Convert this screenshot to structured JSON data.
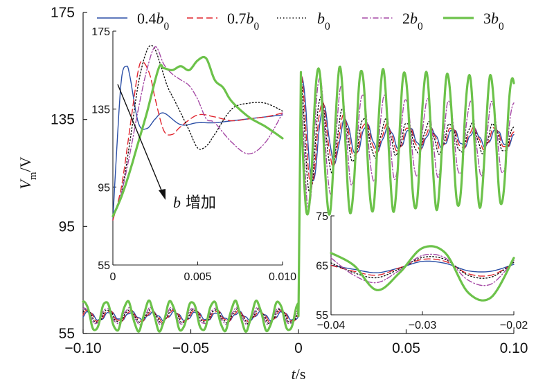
{
  "chart_data": [
    {
      "type": "line",
      "panel": "main",
      "title": "",
      "xlabel": "t/s",
      "ylabel": "Vm/V",
      "xlim": [
        -0.1,
        0.1
      ],
      "ylim": [
        55,
        175
      ],
      "xticks": [
        "−0.10",
        "−0.05",
        "0",
        "0.05",
        "0.10"
      ],
      "yticks": [
        "55",
        "95",
        "135",
        "175"
      ],
      "grid": false,
      "legend": {
        "placement": "top",
        "entries": [
          {
            "label": "0.4b0",
            "color": "#2b4fa6",
            "dash": "solid"
          },
          {
            "label": "0.7b0",
            "color": "#e0262f",
            "dash": "dashed"
          },
          {
            "label": "b0",
            "color": "#111111",
            "dash": "dotted"
          },
          {
            "label": "2b0",
            "color": "#a64aa6",
            "dash": "dashdot"
          },
          {
            "label": "3b0",
            "color": "#6cc24a",
            "dash": "solid"
          }
        ]
      },
      "description_series": [
        {
          "name": "0.4b0",
          "pre_fault": {
            "mean": 61.5,
            "amplitude": 1.5,
            "period_s": 0.01
          },
          "post_fault": {
            "mean": 128,
            "amplitude": 4,
            "period_s": 0.01
          }
        },
        {
          "name": "0.7b0",
          "pre_fault": {
            "mean": 61.5,
            "amplitude": 2,
            "period_s": 0.01
          },
          "post_fault": {
            "mean": 128,
            "amplitude": 5,
            "period_s": 0.01
          }
        },
        {
          "name": "b0",
          "pre_fault": {
            "mean": 61.5,
            "amplitude": 2.5,
            "period_s": 0.01
          },
          "post_fault": {
            "mean": 128,
            "amplitude": 7,
            "period_s": 0.01
          }
        },
        {
          "name": "2b0",
          "pre_fault": {
            "mean": 61.5,
            "amplitude": 3,
            "period_s": 0.01
          },
          "post_fault": {
            "mean": 128,
            "amplitude": 18,
            "period_s": 0.01
          }
        },
        {
          "name": "3b0",
          "pre_fault": {
            "mean": 61.5,
            "amplitude": 5.5,
            "period_s": 0.01
          },
          "post_fault": {
            "mean": 127,
            "amplitude": 28,
            "period_s": 0.01
          }
        }
      ]
    },
    {
      "type": "line",
      "panel": "inset-top-left",
      "xlim": [
        0,
        0.01
      ],
      "ylim": [
        55,
        175
      ],
      "xticks": [
        "0",
        "0.005",
        "0.010"
      ],
      "yticks": [
        "55",
        "95",
        "135",
        "175"
      ],
      "annotation": {
        "text": "b 增加"
      },
      "series": [
        {
          "name": "0.4b0",
          "x": [
            0,
            0.0002,
            0.0005,
            0.0008,
            0.001,
            0.0015,
            0.002,
            0.0025,
            0.003,
            0.004,
            0.005,
            0.006,
            0.007,
            0.008,
            0.009,
            0.01
          ],
          "y": [
            78,
            110,
            150,
            157,
            152,
            128,
            125,
            130,
            133,
            127,
            128,
            128,
            129,
            130,
            131,
            132
          ]
        },
        {
          "name": "0.7b0",
          "x": [
            0,
            0.0005,
            0.001,
            0.0015,
            0.0018,
            0.0022,
            0.0025,
            0.003,
            0.0035,
            0.004,
            0.005,
            0.006,
            0.007,
            0.008,
            0.009,
            0.01
          ],
          "y": [
            78,
            95,
            125,
            155,
            159,
            152,
            140,
            124,
            122,
            126,
            132,
            131,
            129,
            130,
            131,
            133
          ]
        },
        {
          "name": "b0",
          "x": [
            0,
            0.0005,
            0.001,
            0.0015,
            0.002,
            0.0024,
            0.0028,
            0.0032,
            0.0036,
            0.004,
            0.0045,
            0.005,
            0.0055,
            0.006,
            0.007,
            0.008,
            0.009,
            0.01
          ],
          "y": [
            80,
            92,
            118,
            148,
            165,
            167,
            158,
            147,
            140,
            133,
            124,
            115,
            116,
            122,
            135,
            138,
            138,
            134
          ]
        },
        {
          "name": "2b0",
          "x": [
            0,
            0.0005,
            0.001,
            0.0015,
            0.002,
            0.0025,
            0.003,
            0.0035,
            0.004,
            0.0045,
            0.005,
            0.0055,
            0.006,
            0.007,
            0.008,
            0.009,
            0.01
          ],
          "y": [
            80,
            92,
            112,
            135,
            155,
            167,
            158,
            153,
            150,
            147,
            140,
            130,
            128,
            118,
            112,
            118,
            133
          ]
        },
        {
          "name": "3b0",
          "x": [
            0,
            0.0005,
            0.001,
            0.0015,
            0.002,
            0.0027,
            0.003,
            0.0035,
            0.004,
            0.0045,
            0.005,
            0.0055,
            0.006,
            0.0065,
            0.007,
            0.008,
            0.009,
            0.01
          ],
          "y": [
            80,
            90,
            103,
            118,
            133,
            156,
            156,
            155,
            157,
            155,
            160,
            161,
            150,
            146,
            139,
            131,
            126,
            120
          ]
        }
      ]
    },
    {
      "type": "line",
      "panel": "inset-bottom-right",
      "xlim": [
        -0.04,
        -0.02
      ],
      "ylim": [
        55,
        75
      ],
      "xticks": [
        "−0.04",
        "−0.03",
        "−0.02"
      ],
      "yticks": [
        "55",
        "65",
        "75"
      ],
      "series": [
        {
          "name": "0.4b0",
          "x": [
            -0.04,
            -0.0375,
            -0.035,
            -0.0325,
            -0.03,
            -0.0275,
            -0.025,
            -0.0225,
            -0.02
          ],
          "y": [
            65,
            64.2,
            63.5,
            64.5,
            65.8,
            65.4,
            63.9,
            63.8,
            65.2
          ]
        },
        {
          "name": "0.7b0",
          "x": [
            -0.04,
            -0.0375,
            -0.035,
            -0.0325,
            -0.03,
            -0.0275,
            -0.025,
            -0.0225,
            -0.02
          ],
          "y": [
            65,
            63.8,
            63,
            64.5,
            66.2,
            65.8,
            63.3,
            63.0,
            65.4
          ]
        },
        {
          "name": "b0",
          "x": [
            -0.04,
            -0.0375,
            -0.035,
            -0.0325,
            -0.03,
            -0.0275,
            -0.025,
            -0.0225,
            -0.02
          ],
          "y": [
            65.5,
            63.5,
            62.5,
            64.3,
            66.6,
            66.2,
            63.0,
            62.6,
            65.6
          ]
        },
        {
          "name": "2b0",
          "x": [
            -0.04,
            -0.0375,
            -0.035,
            -0.0325,
            -0.03,
            -0.0275,
            -0.025,
            -0.0225,
            -0.02
          ],
          "y": [
            66.5,
            63,
            61.5,
            64,
            67,
            66.5,
            62,
            61.2,
            66
          ]
        },
        {
          "name": "3b0",
          "x": [
            -0.04,
            -0.0375,
            -0.035,
            -0.0325,
            -0.03,
            -0.0275,
            -0.025,
            -0.0225,
            -0.02
          ],
          "y": [
            67.5,
            65,
            60,
            63.5,
            68.5,
            67.5,
            59.5,
            58.5,
            66.5
          ]
        }
      ]
    }
  ]
}
